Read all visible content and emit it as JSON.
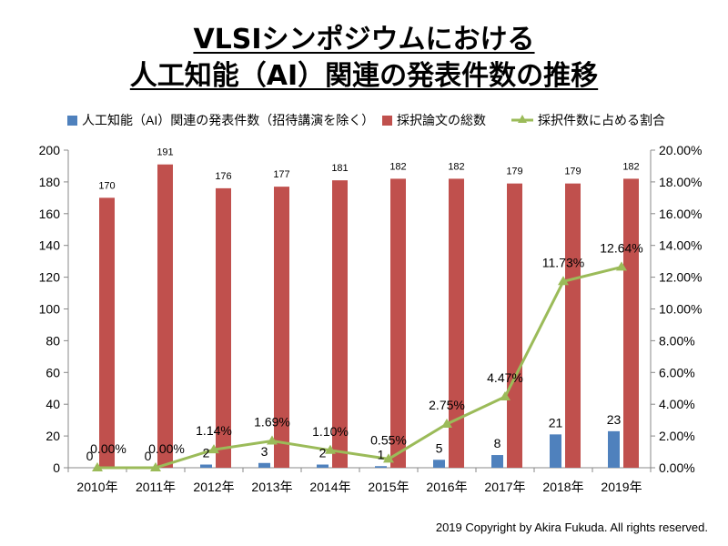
{
  "title_line1": "VLSIシンポジウムにおける",
  "title_line2": "人工知能（AI）関連の発表件数の推移",
  "copyright": "2019 Copyright by Akira Fukuda. All rights reserved.",
  "chart_data": {
    "type": "bar",
    "categories": [
      "2010年",
      "2011年",
      "2012年",
      "2013年",
      "2014年",
      "2015年",
      "2016年",
      "2017年",
      "2018年",
      "2019年"
    ],
    "series": [
      {
        "name": "人工知能（AI）関連の発表件数（招待講演を除く）",
        "type": "bar",
        "axis": "left",
        "color": "#4F81BD",
        "values": [
          0,
          0,
          2,
          3,
          2,
          1,
          5,
          8,
          21,
          23
        ]
      },
      {
        "name": "採択論文の総数",
        "type": "bar",
        "axis": "left",
        "color": "#C0504D",
        "values": [
          170,
          191,
          176,
          177,
          181,
          182,
          182,
          179,
          179,
          182
        ]
      },
      {
        "name": "採択件数に占める割合",
        "type": "line",
        "axis": "right",
        "color": "#9BBB59",
        "values": [
          0.0,
          0.0,
          1.14,
          1.69,
          1.1,
          0.55,
          2.75,
          4.47,
          11.73,
          12.64
        ],
        "labels": [
          "0.00%",
          "0.00%",
          "1.14%",
          "1.69%",
          "1.10%",
          "0.55%",
          "2.75%",
          "4.47%",
          "11.73%",
          "12.64%"
        ]
      }
    ],
    "left_ylim": [
      0,
      200
    ],
    "left_ticks": [
      "0",
      "20",
      "40",
      "60",
      "80",
      "100",
      "120",
      "140",
      "160",
      "180",
      "200"
    ],
    "right_ylim": [
      0,
      20
    ],
    "right_ticks": [
      "0.00%",
      "2.00%",
      "4.00%",
      "6.00%",
      "8.00%",
      "10.00%",
      "12.00%",
      "14.00%",
      "16.00%",
      "18.00%",
      "20.00%"
    ],
    "grid": false,
    "legend_position": "top"
  }
}
